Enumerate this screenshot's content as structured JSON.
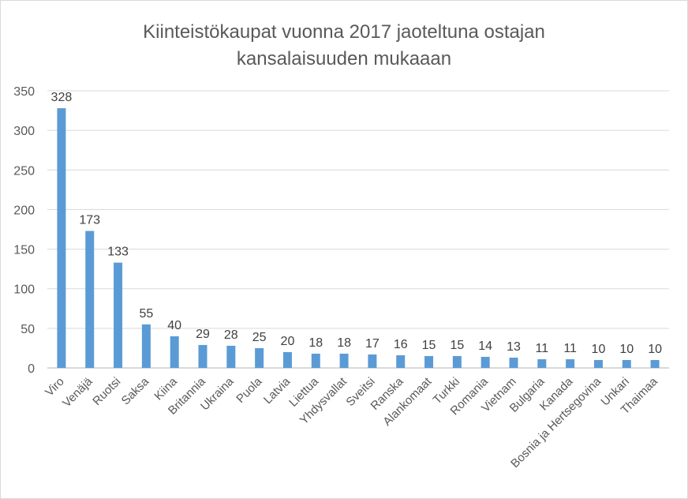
{
  "chart_data": {
    "type": "bar",
    "title_lines": [
      "Kiinteistökaupat vuonna 2017 jaoteltuna ostajan",
      "kansalaisuuden mukaaan"
    ],
    "xlabel": "",
    "ylabel": "",
    "ylim": [
      0,
      350
    ],
    "yticks": [
      0,
      50,
      100,
      150,
      200,
      250,
      300,
      350
    ],
    "grid": true,
    "legend": "none",
    "bar_color": "#5b9bd5",
    "categories": [
      "Viro",
      "Venäjä",
      "Ruotsi",
      "Saksa",
      "Kiina",
      "Britannia",
      "Ukraina",
      "Puola",
      "Latvia",
      "Liettua",
      "Yhdysvallat",
      "Sveitsi",
      "Ranska",
      "Alankomaat",
      "Turkki",
      "Romania",
      "Vietnam",
      "Bulgaria",
      "Kanada",
      "Bosnia ja Hertsegovina",
      "Unkari",
      "Thaimaa"
    ],
    "values": [
      328,
      173,
      133,
      55,
      40,
      29,
      28,
      25,
      20,
      18,
      18,
      17,
      16,
      15,
      15,
      14,
      13,
      11,
      11,
      10,
      10,
      10
    ]
  }
}
